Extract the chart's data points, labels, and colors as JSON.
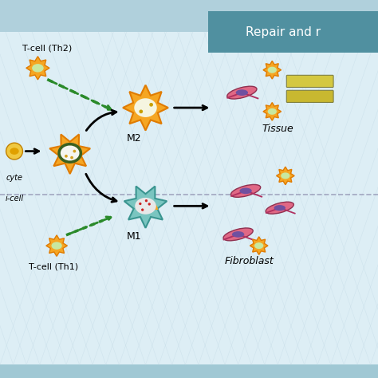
{
  "background_top": "#b8d8e0",
  "background_main": "#e8f4f8",
  "hatching_color": "#c5dce8",
  "repair_box_color": "#5a9aaa",
  "repair_text": "Repair and r",
  "repair_text_color": "#ffffff",
  "title_color": "#000000",
  "fig_width": 4.74,
  "fig_height": 4.74,
  "dpi": 100,
  "labels": {
    "tcell_th2": "T-cell (Th2)",
    "macrophyte": "cyte",
    "b_cell": "i-cell",
    "m2": "M2",
    "m1": "M1",
    "tissue": "Tissue",
    "fibroblast": "Fibroblast",
    "tcell_th1": "T-cell (Th1)"
  },
  "colors": {
    "orange_cell": "#f5a623",
    "orange_border": "#e07b00",
    "green_cell": "#4a7a3a",
    "teal_cell": "#5ab5b0",
    "pink_cell": "#e87090",
    "purple_nucleus": "#8060a0",
    "white_nucleus": "#f0f0f0",
    "yellow_tissue": "#d4c840",
    "arrow_black": "#111111",
    "arrow_green": "#2a8a2a",
    "dashed_line": "#aaaaaa"
  }
}
